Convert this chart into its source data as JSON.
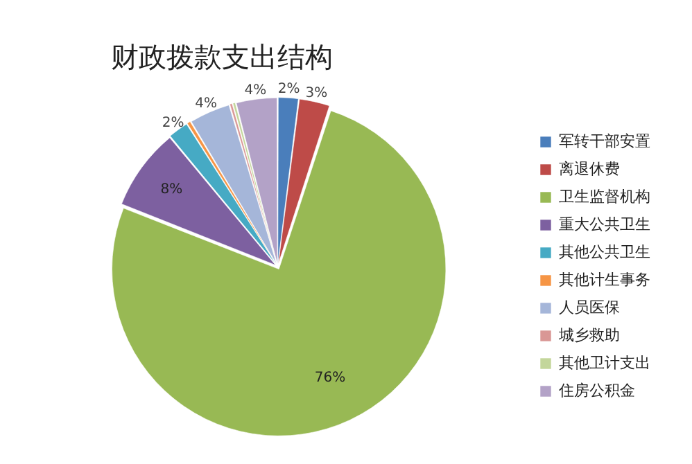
{
  "chart_data": {
    "type": "pie",
    "title": "财政拨款支出结构",
    "categories": [
      "军转干部安置",
      "离退休费",
      "卫生监督机构",
      "重大公共卫生",
      "其他公共卫生",
      "其他计生事务",
      "人员医保",
      "城乡救助",
      "其他卫计支出",
      "住房公积金"
    ],
    "values": [
      2,
      3,
      76,
      8,
      2,
      0.4,
      4,
      0.3,
      0.3,
      4
    ],
    "value_labels": [
      "2%",
      "3%",
      "76%",
      "8%",
      "2%",
      null,
      "4%",
      null,
      null,
      "4%"
    ],
    "colors": [
      "#4a7ebb",
      "#be4b48",
      "#98b954",
      "#7d60a0",
      "#46aac4",
      "#f69545",
      "#a5b6d9",
      "#d99795",
      "#c3d69b",
      "#b3a2c7"
    ],
    "legend": "right"
  }
}
